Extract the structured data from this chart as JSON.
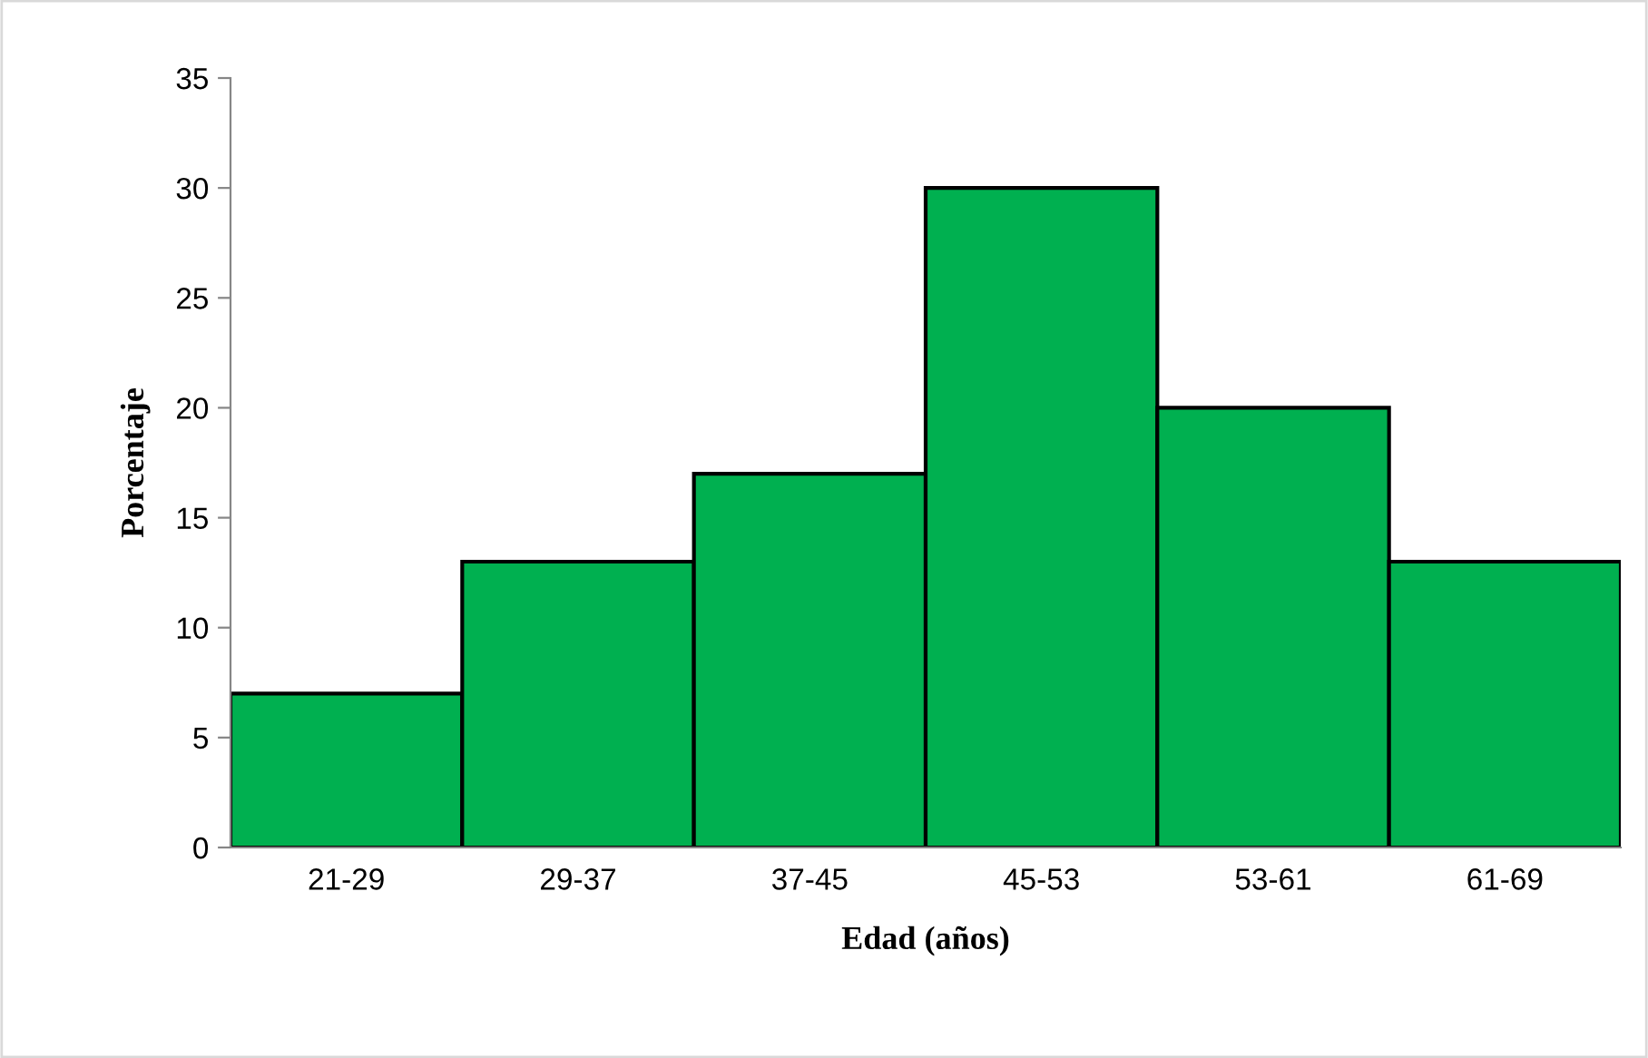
{
  "chart_data": {
    "type": "bar",
    "xlabel": "Edad (años)",
    "ylabel": "Porcentaje",
    "categories": [
      "21-29",
      "29-37",
      "37-45",
      "45-53",
      "53-61",
      "61-69"
    ],
    "values": [
      7,
      13,
      17,
      30,
      20,
      13
    ],
    "color": "#00b050",
    "ylim": [
      0,
      35
    ],
    "yticks": [
      0,
      5,
      10,
      15,
      20,
      25,
      30,
      35
    ],
    "grid": false,
    "legend": false
  }
}
